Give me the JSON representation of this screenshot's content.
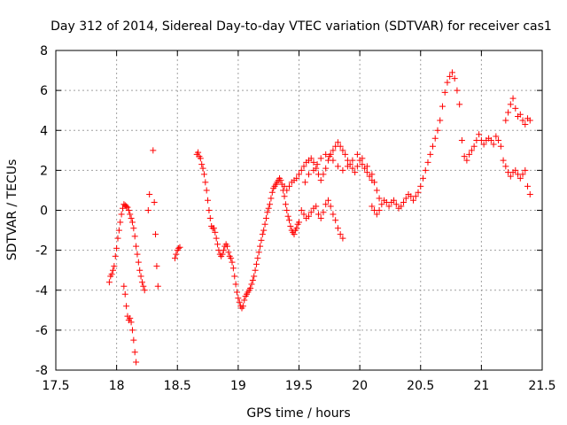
{
  "chart_data": {
    "type": "scatter",
    "title": "Day 312 of 2014, Sidereal Day-to-day VTEC variation (SDTVAR) for receiver cas1",
    "xlabel": "GPS time / hours",
    "ylabel": "SDTVAR / TECUs",
    "xlim": [
      17.5,
      21.5
    ],
    "ylim": [
      -8,
      8
    ],
    "xticks": [
      17.5,
      18,
      18.5,
      19,
      19.5,
      20,
      20.5,
      21,
      21.5
    ],
    "xtick_labels": [
      "17.5",
      "18",
      "18.5",
      "19",
      "19.5",
      "20",
      "20.5",
      "21",
      "21.5"
    ],
    "yticks": [
      -8,
      -6,
      -4,
      -2,
      0,
      2,
      4,
      6,
      8
    ],
    "ytick_labels": [
      "-8",
      "-6",
      "-4",
      "-2",
      "0",
      "2",
      "4",
      "6",
      "8"
    ],
    "grid": true,
    "marker": "+",
    "color": "#ff0000",
    "series": [
      {
        "name": "sdtvar",
        "points": [
          [
            17.94,
            -3.6
          ],
          [
            17.95,
            -3.3
          ],
          [
            17.96,
            -3.2
          ],
          [
            17.97,
            -3.0
          ],
          [
            17.98,
            -2.8
          ],
          [
            17.99,
            -2.3
          ],
          [
            18.0,
            -1.9
          ],
          [
            18.01,
            -1.4
          ],
          [
            18.02,
            -1.0
          ],
          [
            18.03,
            -0.6
          ],
          [
            18.04,
            -0.2
          ],
          [
            18.05,
            0.1
          ],
          [
            18.06,
            0.3
          ],
          [
            18.07,
            0.25
          ],
          [
            18.08,
            0.2
          ],
          [
            18.09,
            0.15
          ],
          [
            18.1,
            0.0
          ],
          [
            18.11,
            -0.2
          ],
          [
            18.12,
            -0.4
          ],
          [
            18.13,
            -0.6
          ],
          [
            18.14,
            -0.9
          ],
          [
            18.15,
            -1.3
          ],
          [
            18.16,
            -1.8
          ],
          [
            18.17,
            -2.2
          ],
          [
            18.18,
            -2.6
          ],
          [
            18.19,
            -3.0
          ],
          [
            18.2,
            -3.3
          ],
          [
            18.21,
            -3.6
          ],
          [
            18.22,
            -3.8
          ],
          [
            18.23,
            -4.0
          ],
          [
            18.06,
            -3.8
          ],
          [
            18.07,
            -4.2
          ],
          [
            18.08,
            -4.8
          ],
          [
            18.09,
            -5.3
          ],
          [
            18.1,
            -5.5
          ],
          [
            18.11,
            -5.4
          ],
          [
            18.12,
            -5.6
          ],
          [
            18.13,
            -6.0
          ],
          [
            18.14,
            -6.5
          ],
          [
            18.15,
            -7.1
          ],
          [
            18.16,
            -7.6
          ],
          [
            18.26,
            0.0
          ],
          [
            18.27,
            0.8
          ],
          [
            18.3,
            3.0
          ],
          [
            18.31,
            0.4
          ],
          [
            18.32,
            -1.2
          ],
          [
            18.33,
            -2.8
          ],
          [
            18.34,
            -3.8
          ],
          [
            18.48,
            -2.4
          ],
          [
            18.49,
            -2.2
          ],
          [
            18.5,
            -2.0
          ],
          [
            18.51,
            -1.9
          ],
          [
            18.52,
            -1.85
          ],
          [
            18.66,
            2.8
          ],
          [
            18.67,
            2.9
          ],
          [
            18.68,
            2.7
          ],
          [
            18.69,
            2.6
          ],
          [
            18.7,
            2.3
          ],
          [
            18.71,
            2.1
          ],
          [
            18.72,
            1.8
          ],
          [
            18.73,
            1.4
          ],
          [
            18.74,
            1.0
          ],
          [
            18.75,
            0.5
          ],
          [
            18.76,
            0.0
          ],
          [
            18.77,
            -0.4
          ],
          [
            18.78,
            -0.8
          ],
          [
            18.79,
            -0.9
          ],
          [
            18.8,
            -0.9
          ],
          [
            18.81,
            -1.1
          ],
          [
            18.82,
            -1.4
          ],
          [
            18.83,
            -1.7
          ],
          [
            18.84,
            -2.0
          ],
          [
            18.85,
            -2.2
          ],
          [
            18.86,
            -2.3
          ],
          [
            18.87,
            -2.2
          ],
          [
            18.88,
            -2.0
          ],
          [
            18.89,
            -1.8
          ],
          [
            18.9,
            -1.7
          ],
          [
            18.91,
            -1.8
          ],
          [
            18.92,
            -2.1
          ],
          [
            18.93,
            -2.3
          ],
          [
            18.94,
            -2.4
          ],
          [
            18.95,
            -2.6
          ],
          [
            18.96,
            -2.9
          ],
          [
            18.97,
            -3.3
          ],
          [
            18.98,
            -3.7
          ],
          [
            18.99,
            -4.1
          ],
          [
            19.0,
            -4.4
          ],
          [
            19.01,
            -4.6
          ],
          [
            19.02,
            -4.8
          ],
          [
            19.03,
            -4.9
          ],
          [
            19.04,
            -4.8
          ],
          [
            19.05,
            -4.5
          ],
          [
            19.06,
            -4.3
          ],
          [
            19.07,
            -4.2
          ],
          [
            19.08,
            -4.1
          ],
          [
            19.09,
            -4.0
          ],
          [
            19.1,
            -3.9
          ],
          [
            19.11,
            -3.7
          ],
          [
            19.12,
            -3.5
          ],
          [
            19.13,
            -3.3
          ],
          [
            19.14,
            -3.0
          ],
          [
            19.15,
            -2.7
          ],
          [
            19.16,
            -2.4
          ],
          [
            19.17,
            -2.1
          ],
          [
            19.18,
            -1.8
          ],
          [
            19.19,
            -1.5
          ],
          [
            19.2,
            -1.2
          ],
          [
            19.21,
            -1.0
          ],
          [
            19.22,
            -0.7
          ],
          [
            19.23,
            -0.4
          ],
          [
            19.24,
            -0.1
          ],
          [
            19.25,
            0.1
          ],
          [
            19.26,
            0.3
          ],
          [
            19.27,
            0.6
          ],
          [
            19.28,
            0.9
          ],
          [
            19.29,
            1.1
          ],
          [
            19.3,
            1.2
          ],
          [
            19.31,
            1.3
          ],
          [
            19.32,
            1.4
          ],
          [
            19.33,
            1.5
          ],
          [
            19.34,
            1.6
          ],
          [
            19.35,
            1.5
          ],
          [
            19.36,
            1.3
          ],
          [
            19.37,
            1.0
          ],
          [
            19.38,
            0.7
          ],
          [
            19.39,
            0.3
          ],
          [
            19.4,
            0.0
          ],
          [
            19.41,
            -0.3
          ],
          [
            19.42,
            -0.5
          ],
          [
            19.43,
            -0.8
          ],
          [
            19.44,
            -1.0
          ],
          [
            19.45,
            -1.1
          ],
          [
            19.46,
            -1.2
          ],
          [
            19.47,
            -1.0
          ],
          [
            19.48,
            -0.9
          ],
          [
            19.49,
            -0.7
          ],
          [
            19.5,
            -0.6
          ],
          [
            19.38,
            1.2
          ],
          [
            19.4,
            1.0
          ],
          [
            19.42,
            1.2
          ],
          [
            19.44,
            1.4
          ],
          [
            19.46,
            1.5
          ],
          [
            19.48,
            1.6
          ],
          [
            19.5,
            1.8
          ],
          [
            19.52,
            2.0
          ],
          [
            19.54,
            2.2
          ],
          [
            19.56,
            2.4
          ],
          [
            19.58,
            2.5
          ],
          [
            19.6,
            2.6
          ],
          [
            19.62,
            2.4
          ],
          [
            19.64,
            2.1
          ],
          [
            19.66,
            1.8
          ],
          [
            19.68,
            1.5
          ],
          [
            19.7,
            1.8
          ],
          [
            19.72,
            2.1
          ],
          [
            19.74,
            2.5
          ],
          [
            19.76,
            2.8
          ],
          [
            19.78,
            3.0
          ],
          [
            19.8,
            3.2
          ],
          [
            19.82,
            3.4
          ],
          [
            19.84,
            3.2
          ],
          [
            19.86,
            3.0
          ],
          [
            19.88,
            2.8
          ],
          [
            19.9,
            2.5
          ],
          [
            19.92,
            2.3
          ],
          [
            19.94,
            2.1
          ],
          [
            19.96,
            1.9
          ],
          [
            19.98,
            2.2
          ],
          [
            20.0,
            2.5
          ],
          [
            20.02,
            2.3
          ],
          [
            20.04,
            2.1
          ],
          [
            20.06,
            1.9
          ],
          [
            20.08,
            1.7
          ],
          [
            20.1,
            1.5
          ],
          [
            19.52,
            0.0
          ],
          [
            19.54,
            -0.2
          ],
          [
            19.56,
            -0.4
          ],
          [
            19.58,
            -0.3
          ],
          [
            19.6,
            -0.1
          ],
          [
            19.62,
            0.1
          ],
          [
            19.64,
            0.2
          ],
          [
            19.66,
            -0.2
          ],
          [
            19.68,
            -0.4
          ],
          [
            19.7,
            -0.1
          ],
          [
            19.72,
            0.3
          ],
          [
            19.74,
            0.5
          ],
          [
            19.76,
            0.2
          ],
          [
            19.78,
            -0.2
          ],
          [
            19.8,
            -0.5
          ],
          [
            19.82,
            -0.9
          ],
          [
            19.84,
            -1.2
          ],
          [
            19.86,
            -1.4
          ],
          [
            19.55,
            1.4
          ],
          [
            19.58,
            1.8
          ],
          [
            19.62,
            2.0
          ],
          [
            19.65,
            2.3
          ],
          [
            19.68,
            2.6
          ],
          [
            19.72,
            2.8
          ],
          [
            19.75,
            2.7
          ],
          [
            19.78,
            2.5
          ],
          [
            19.82,
            2.2
          ],
          [
            19.86,
            2.0
          ],
          [
            19.9,
            2.2
          ],
          [
            19.94,
            2.5
          ],
          [
            19.98,
            2.8
          ],
          [
            20.02,
            2.6
          ],
          [
            20.06,
            2.2
          ],
          [
            20.1,
            1.8
          ],
          [
            20.12,
            1.4
          ],
          [
            20.14,
            1.0
          ],
          [
            20.16,
            0.6
          ],
          [
            20.1,
            0.2
          ],
          [
            20.12,
            0.0
          ],
          [
            20.14,
            -0.2
          ],
          [
            20.16,
            0.0
          ],
          [
            20.18,
            0.3
          ],
          [
            20.2,
            0.5
          ],
          [
            20.22,
            0.4
          ],
          [
            20.24,
            0.2
          ],
          [
            20.26,
            0.4
          ],
          [
            20.28,
            0.5
          ],
          [
            20.3,
            0.3
          ],
          [
            20.32,
            0.1
          ],
          [
            20.34,
            0.2
          ],
          [
            20.36,
            0.4
          ],
          [
            20.38,
            0.6
          ],
          [
            20.4,
            0.8
          ],
          [
            20.42,
            0.7
          ],
          [
            20.44,
            0.5
          ],
          [
            20.46,
            0.7
          ],
          [
            20.48,
            0.9
          ],
          [
            20.5,
            1.2
          ],
          [
            20.52,
            1.6
          ],
          [
            20.54,
            2.0
          ],
          [
            20.56,
            2.4
          ],
          [
            20.58,
            2.8
          ],
          [
            20.6,
            3.2
          ],
          [
            20.62,
            3.6
          ],
          [
            20.64,
            4.0
          ],
          [
            20.66,
            4.5
          ],
          [
            20.68,
            5.2
          ],
          [
            20.7,
            5.9
          ],
          [
            20.72,
            6.4
          ],
          [
            20.74,
            6.7
          ],
          [
            20.76,
            6.9
          ],
          [
            20.78,
            6.6
          ],
          [
            20.8,
            6.0
          ],
          [
            20.82,
            5.3
          ],
          [
            20.84,
            3.5
          ],
          [
            20.86,
            2.7
          ],
          [
            20.88,
            2.5
          ],
          [
            20.9,
            2.8
          ],
          [
            20.92,
            3.0
          ],
          [
            20.94,
            3.2
          ],
          [
            20.96,
            3.5
          ],
          [
            20.98,
            3.8
          ],
          [
            21.0,
            3.5
          ],
          [
            21.02,
            3.3
          ],
          [
            21.04,
            3.5
          ],
          [
            21.06,
            3.6
          ],
          [
            21.08,
            3.5
          ],
          [
            21.1,
            3.3
          ],
          [
            21.12,
            3.7
          ],
          [
            21.14,
            3.5
          ],
          [
            21.16,
            3.2
          ],
          [
            21.18,
            2.5
          ],
          [
            21.2,
            2.2
          ],
          [
            21.22,
            1.9
          ],
          [
            21.24,
            1.7
          ],
          [
            21.26,
            1.9
          ],
          [
            21.28,
            2.0
          ],
          [
            21.3,
            1.8
          ],
          [
            21.32,
            1.6
          ],
          [
            21.34,
            1.8
          ],
          [
            21.36,
            2.0
          ],
          [
            21.38,
            1.2
          ],
          [
            21.4,
            0.8
          ],
          [
            21.2,
            4.5
          ],
          [
            21.22,
            4.9
          ],
          [
            21.24,
            5.3
          ],
          [
            21.26,
            5.6
          ],
          [
            21.28,
            5.1
          ],
          [
            21.3,
            4.7
          ],
          [
            21.32,
            4.8
          ],
          [
            21.34,
            4.5
          ],
          [
            21.36,
            4.3
          ],
          [
            21.38,
            4.6
          ],
          [
            21.4,
            4.5
          ]
        ]
      }
    ]
  }
}
